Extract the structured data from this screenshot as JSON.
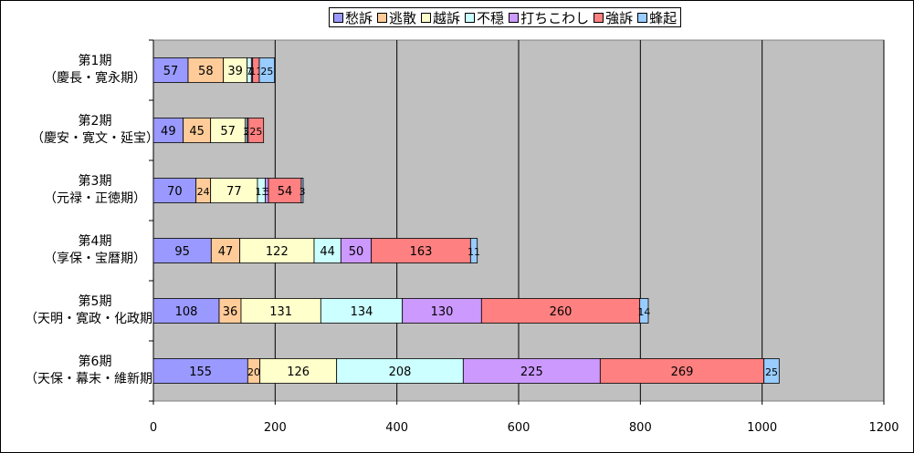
{
  "chart_data": {
    "type": "bar",
    "orientation": "horizontal",
    "stacked": true,
    "categories": [
      {
        "line1": "第1期",
        "line2": "（慶長・寛永期）"
      },
      {
        "line1": "第2期",
        "line2": "（慶安・寛文・延宝）"
      },
      {
        "line1": "第3期",
        "line2": "（元禄・正徳期）"
      },
      {
        "line1": "第4期",
        "line2": "（享保・宝暦期）"
      },
      {
        "line1": "第5期",
        "line2": "（天明・寛政・化政期）"
      },
      {
        "line1": "第6期",
        "line2": "（天保・幕末・維新期）"
      }
    ],
    "series": [
      {
        "name": "愁訴",
        "color": "#9999ff",
        "values": [
          57,
          49,
          70,
          95,
          108,
          155
        ]
      },
      {
        "name": "逃散",
        "color": "#ffcc99",
        "values": [
          58,
          45,
          24,
          47,
          36,
          20
        ]
      },
      {
        "name": "越訴",
        "color": "#ffffcc",
        "values": [
          39,
          57,
          77,
          122,
          131,
          126
        ]
      },
      {
        "name": "不穏",
        "color": "#ccffff",
        "values": [
          7,
          3,
          13,
          44,
          134,
          208
        ]
      },
      {
        "name": "打ちこわし",
        "color": "#cc99ff",
        "values": [
          2,
          2,
          5,
          50,
          130,
          225
        ]
      },
      {
        "name": "強訴",
        "color": "#ff8080",
        "values": [
          11,
          25,
          54,
          163,
          260,
          269
        ]
      },
      {
        "name": "蜂起",
        "color": "#99ccff",
        "values": [
          25,
          0,
          3,
          11,
          14,
          25
        ]
      }
    ],
    "xlim": [
      0,
      1200
    ],
    "xticks": [
      0,
      200,
      400,
      600,
      800,
      1000,
      1200
    ],
    "grid": "vertical",
    "legend": "top",
    "plot_background": "#c0c0c0"
  }
}
